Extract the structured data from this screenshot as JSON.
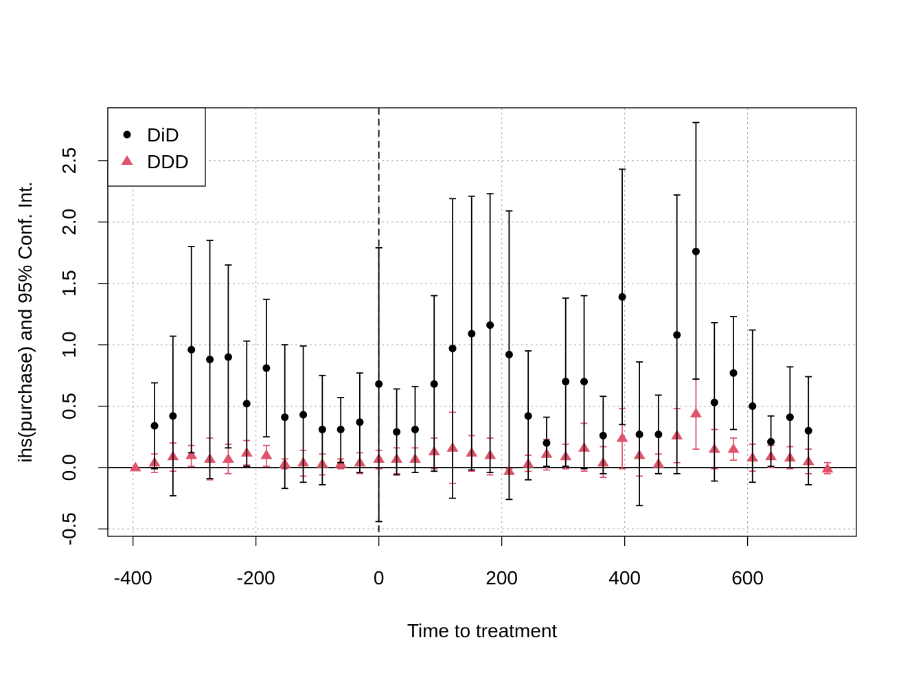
{
  "chart_data": {
    "type": "scatter",
    "title": "",
    "xlabel": "Time to treatment",
    "ylabel": "ihs(purchase) and 95% Conf. Int.",
    "xlim": [
      -441,
      777
    ],
    "ylim": [
      -0.56,
      2.93
    ],
    "x_ticks": [
      -400,
      -200,
      0,
      200,
      400,
      600
    ],
    "x_tick_labels": [
      "-400",
      "-200",
      "0",
      "200",
      "400",
      "600"
    ],
    "y_ticks": [
      -0.5,
      0.0,
      0.5,
      1.0,
      1.5,
      2.0,
      2.5
    ],
    "y_tick_labels": [
      "-0.5",
      "0.0",
      "0.5",
      "1.0",
      "1.5",
      "2.0",
      "2.5"
    ],
    "grid": true,
    "reference_vline_x": 0,
    "reference_hline_y": 0,
    "legend": {
      "position": "top-left",
      "entries": [
        "DiD",
        "DDD"
      ]
    },
    "colors": {
      "DiD": "#000000",
      "DDD": "#DF536B",
      "grid": "#b3b3b3"
    },
    "series": [
      {
        "name": "DiD",
        "marker": "circle",
        "x": [
          -365,
          -335,
          -305,
          -275,
          -245,
          -215,
          -183,
          -153,
          -123,
          -92,
          -62,
          -31,
          0,
          29,
          59,
          90,
          120,
          151,
          181,
          212,
          243,
          273,
          304,
          334,
          365,
          396,
          424,
          455,
          485,
          516,
          546,
          577,
          608,
          638,
          669,
          699
        ],
        "y": [
          0.34,
          0.42,
          0.96,
          0.88,
          0.9,
          0.52,
          0.81,
          0.41,
          0.43,
          0.31,
          0.31,
          0.37,
          0.68,
          0.29,
          0.31,
          0.68,
          0.97,
          1.09,
          1.16,
          0.92,
          0.42,
          0.2,
          0.7,
          0.7,
          0.26,
          1.39,
          0.27,
          0.27,
          1.08,
          1.76,
          0.53,
          0.77,
          0.5,
          0.21,
          0.41,
          0.3
        ],
        "lower": [
          -0.01,
          -0.23,
          0.12,
          -0.09,
          0.16,
          0.01,
          0.25,
          -0.17,
          -0.12,
          -0.14,
          0.04,
          -0.04,
          -0.44,
          -0.06,
          -0.04,
          -0.03,
          -0.25,
          -0.02,
          -0.04,
          -0.26,
          -0.1,
          0.01,
          0.01,
          -0.01,
          -0.05,
          0.35,
          -0.31,
          -0.05,
          -0.05,
          0.72,
          -0.11,
          0.31,
          -0.12,
          0.01,
          0.0,
          -0.14
        ],
        "upper": [
          0.69,
          1.07,
          1.8,
          1.85,
          1.65,
          1.03,
          1.37,
          1.0,
          0.99,
          0.75,
          0.57,
          0.77,
          1.79,
          0.64,
          0.66,
          1.4,
          2.19,
          2.21,
          2.23,
          2.09,
          0.95,
          0.41,
          1.38,
          1.4,
          0.58,
          2.43,
          0.86,
          0.59,
          2.22,
          2.81,
          1.18,
          1.23,
          1.12,
          0.42,
          0.82,
          0.74
        ]
      },
      {
        "name": "DDD",
        "marker": "triangle",
        "x": [
          -396,
          -365,
          -335,
          -305,
          -275,
          -245,
          -215,
          -183,
          -153,
          -123,
          -92,
          -62,
          -31,
          0,
          29,
          59,
          90,
          120,
          151,
          181,
          212,
          243,
          273,
          304,
          334,
          365,
          396,
          424,
          455,
          485,
          516,
          546,
          577,
          608,
          638,
          669,
          699,
          730
        ],
        "y": [
          0.0,
          0.04,
          0.09,
          0.1,
          0.07,
          0.07,
          0.12,
          0.1,
          0.03,
          0.04,
          0.03,
          0.03,
          0.04,
          0.07,
          0.07,
          0.07,
          0.13,
          0.16,
          0.12,
          0.1,
          -0.03,
          0.03,
          0.11,
          0.09,
          0.16,
          0.04,
          0.24,
          0.1,
          0.03,
          0.26,
          0.44,
          0.15,
          0.15,
          0.08,
          0.09,
          0.08,
          0.05,
          -0.01
        ],
        "lower": [
          0.0,
          -0.04,
          -0.03,
          0.01,
          -0.1,
          -0.05,
          0.02,
          0.01,
          -0.01,
          -0.07,
          -0.06,
          -0.01,
          -0.05,
          -0.01,
          -0.05,
          -0.04,
          -0.01,
          -0.13,
          -0.03,
          -0.06,
          -0.04,
          -0.03,
          -0.02,
          -0.01,
          -0.03,
          -0.08,
          -0.01,
          -0.07,
          -0.05,
          0.04,
          0.15,
          -0.01,
          0.06,
          -0.03,
          0.0,
          -0.01,
          -0.05,
          -0.05
        ],
        "upper": [
          0.0,
          0.11,
          0.2,
          0.18,
          0.24,
          0.19,
          0.22,
          0.18,
          0.07,
          0.14,
          0.11,
          0.07,
          0.12,
          0.14,
          0.16,
          0.16,
          0.24,
          0.45,
          0.26,
          0.24,
          -0.01,
          0.1,
          0.23,
          0.19,
          0.36,
          0.17,
          0.48,
          0.26,
          0.11,
          0.48,
          0.72,
          0.31,
          0.24,
          0.19,
          0.18,
          0.17,
          0.15,
          0.04
        ]
      }
    ]
  }
}
